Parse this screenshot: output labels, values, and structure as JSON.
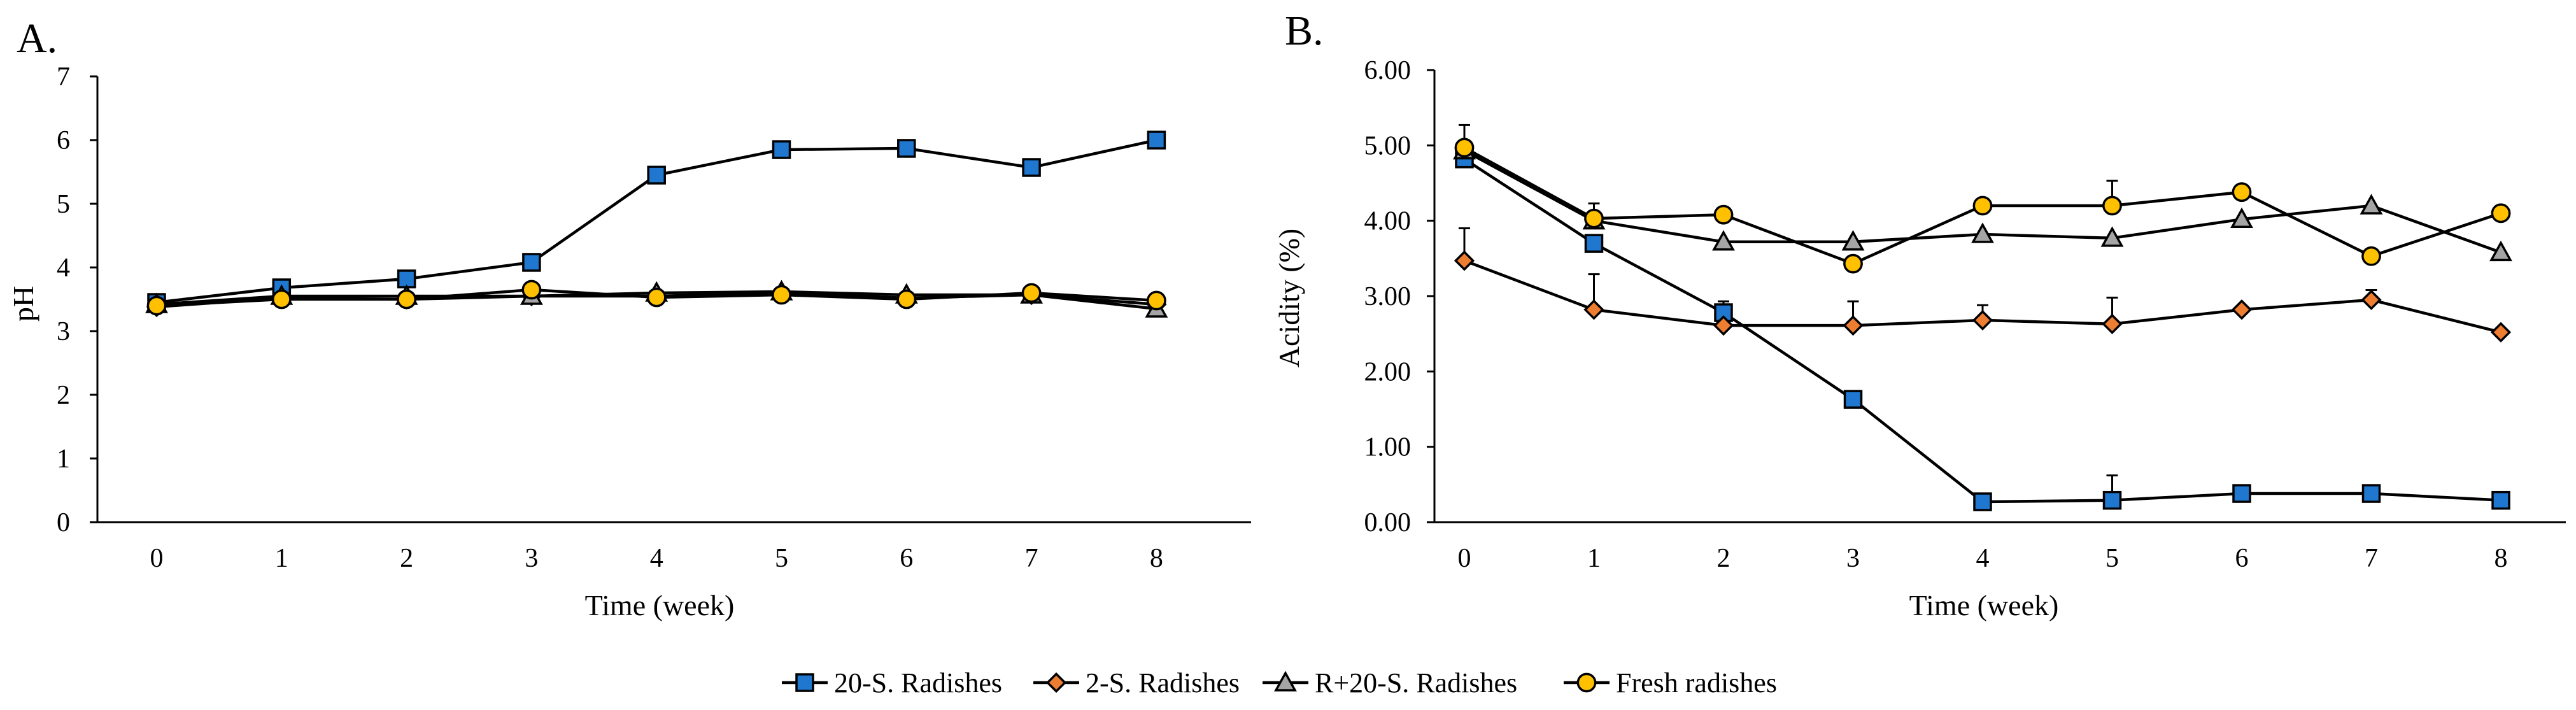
{
  "chart_data": [
    {
      "panel": "A.",
      "type": "line",
      "xlabel": "Time (week)",
      "ylabel": "pH",
      "ylim": [
        0,
        7
      ],
      "yticks": [
        "0",
        "1",
        "2",
        "3",
        "4",
        "5",
        "6",
        "7"
      ],
      "categories": [
        "0",
        "1",
        "2",
        "3",
        "4",
        "5",
        "6",
        "7",
        "8"
      ],
      "grid": false,
      "series": [
        {
          "name": "20-S. Radishes",
          "marker": "square",
          "color": "#1f77d0",
          "values": [
            3.45,
            3.68,
            3.82,
            4.08,
            5.45,
            5.85,
            5.87,
            5.57,
            6.0
          ]
        },
        {
          "name": "2-S. Radishes",
          "marker": "diamond",
          "color": "#ed7d31",
          "values": [
            3.38,
            3.52,
            3.5,
            3.55,
            3.55,
            3.6,
            3.52,
            3.57,
            3.42
          ]
        },
        {
          "name": "R+20-S. Radishes",
          "marker": "triangle",
          "color": "#a5a5a5",
          "values": [
            3.42,
            3.55,
            3.55,
            3.55,
            3.6,
            3.62,
            3.57,
            3.57,
            3.35
          ]
        },
        {
          "name": "Fresh radishes",
          "marker": "circle",
          "color": "#ffc000",
          "values": [
            3.4,
            3.5,
            3.5,
            3.65,
            3.53,
            3.57,
            3.5,
            3.6,
            3.48
          ]
        }
      ]
    },
    {
      "panel": "B.",
      "type": "line",
      "xlabel": "Time (week)",
      "ylabel": "Acidity (%)",
      "ylim": [
        0,
        6
      ],
      "yticks": [
        "0.00",
        "1.00",
        "2.00",
        "3.00",
        "4.00",
        "5.00",
        "6.00"
      ],
      "categories": [
        "0",
        "1",
        "2",
        "3",
        "4",
        "5",
        "6",
        "7",
        "8"
      ],
      "grid": false,
      "series": [
        {
          "name": "20-S. Radishes",
          "marker": "square",
          "color": "#1f77d0",
          "values": [
            4.82,
            3.7,
            2.78,
            1.63,
            0.27,
            0.29,
            0.38,
            0.38,
            0.29
          ],
          "error": [
            0,
            0,
            0.15,
            0,
            0,
            0.33,
            0,
            0,
            0
          ]
        },
        {
          "name": "2-S. Radishes",
          "marker": "diamond",
          "color": "#ed7d31",
          "values": [
            3.47,
            2.82,
            2.61,
            2.61,
            2.68,
            2.63,
            2.82,
            2.95,
            2.52
          ],
          "error": [
            0.43,
            0.47,
            0,
            0.32,
            0.2,
            0.35,
            0,
            0.13,
            0
          ]
        },
        {
          "name": "R+20-S. Radishes",
          "marker": "triangle",
          "color": "#a5a5a5",
          "values": [
            4.93,
            4.0,
            3.72,
            3.72,
            3.82,
            3.77,
            4.02,
            4.2,
            3.58
          ],
          "error": [
            0,
            0,
            0,
            0,
            0,
            0,
            0,
            0,
            0
          ]
        },
        {
          "name": "Fresh radishes",
          "marker": "circle",
          "color": "#ffc000",
          "values": [
            4.97,
            4.03,
            4.08,
            3.43,
            4.2,
            4.2,
            4.38,
            3.53,
            4.1
          ],
          "error": [
            0.3,
            0.2,
            0,
            0,
            0,
            0.33,
            0,
            0,
            0
          ]
        }
      ]
    }
  ],
  "legend": {
    "position": "bottom-center",
    "items": [
      "20-S. Radishes",
      "2-S. Radishes",
      "R+20-S. Radishes",
      "Fresh radishes"
    ]
  }
}
